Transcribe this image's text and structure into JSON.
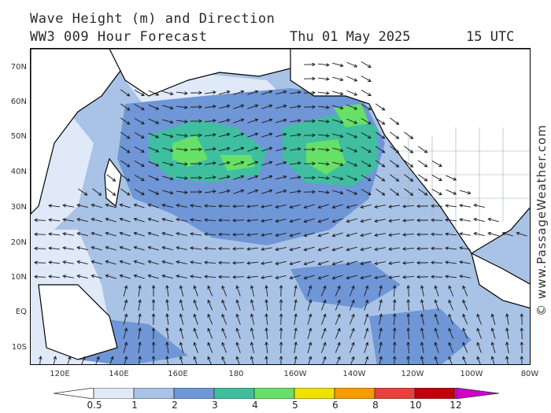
{
  "header": {
    "title_line1": "Wave Height (m) and Direction",
    "title_line2": "WW3 009 Hour Forecast",
    "date": "Thu 01 May 2025",
    "time": "15 UTC"
  },
  "credit": "© www.PassageWeather.com",
  "axes": {
    "lat_labels": [
      "70N",
      "60N",
      "50N",
      "40N",
      "30N",
      "20N",
      "10N",
      "EQ",
      "10S"
    ],
    "lon_labels": [
      "120E",
      "140E",
      "160E",
      "180",
      "160W",
      "140W",
      "120W",
      "100W",
      "80W"
    ]
  },
  "legend": {
    "labels": [
      "0.5",
      "1",
      "2",
      "3",
      "4",
      "5",
      "6",
      "8",
      "10",
      "12"
    ],
    "colors": [
      "#dfe9f7",
      "#a9c3e6",
      "#6f96d6",
      "#3fbf9f",
      "#66e066",
      "#f0e200",
      "#f59c00",
      "#e8403a",
      "#c0000a",
      "#d000c8"
    ]
  },
  "colors": {
    "land": "#ffffff",
    "coast": "#000000",
    "arrow": "#1a1a1a"
  },
  "regions": {
    "land": "land-mass",
    "sea": "sea-area"
  }
}
